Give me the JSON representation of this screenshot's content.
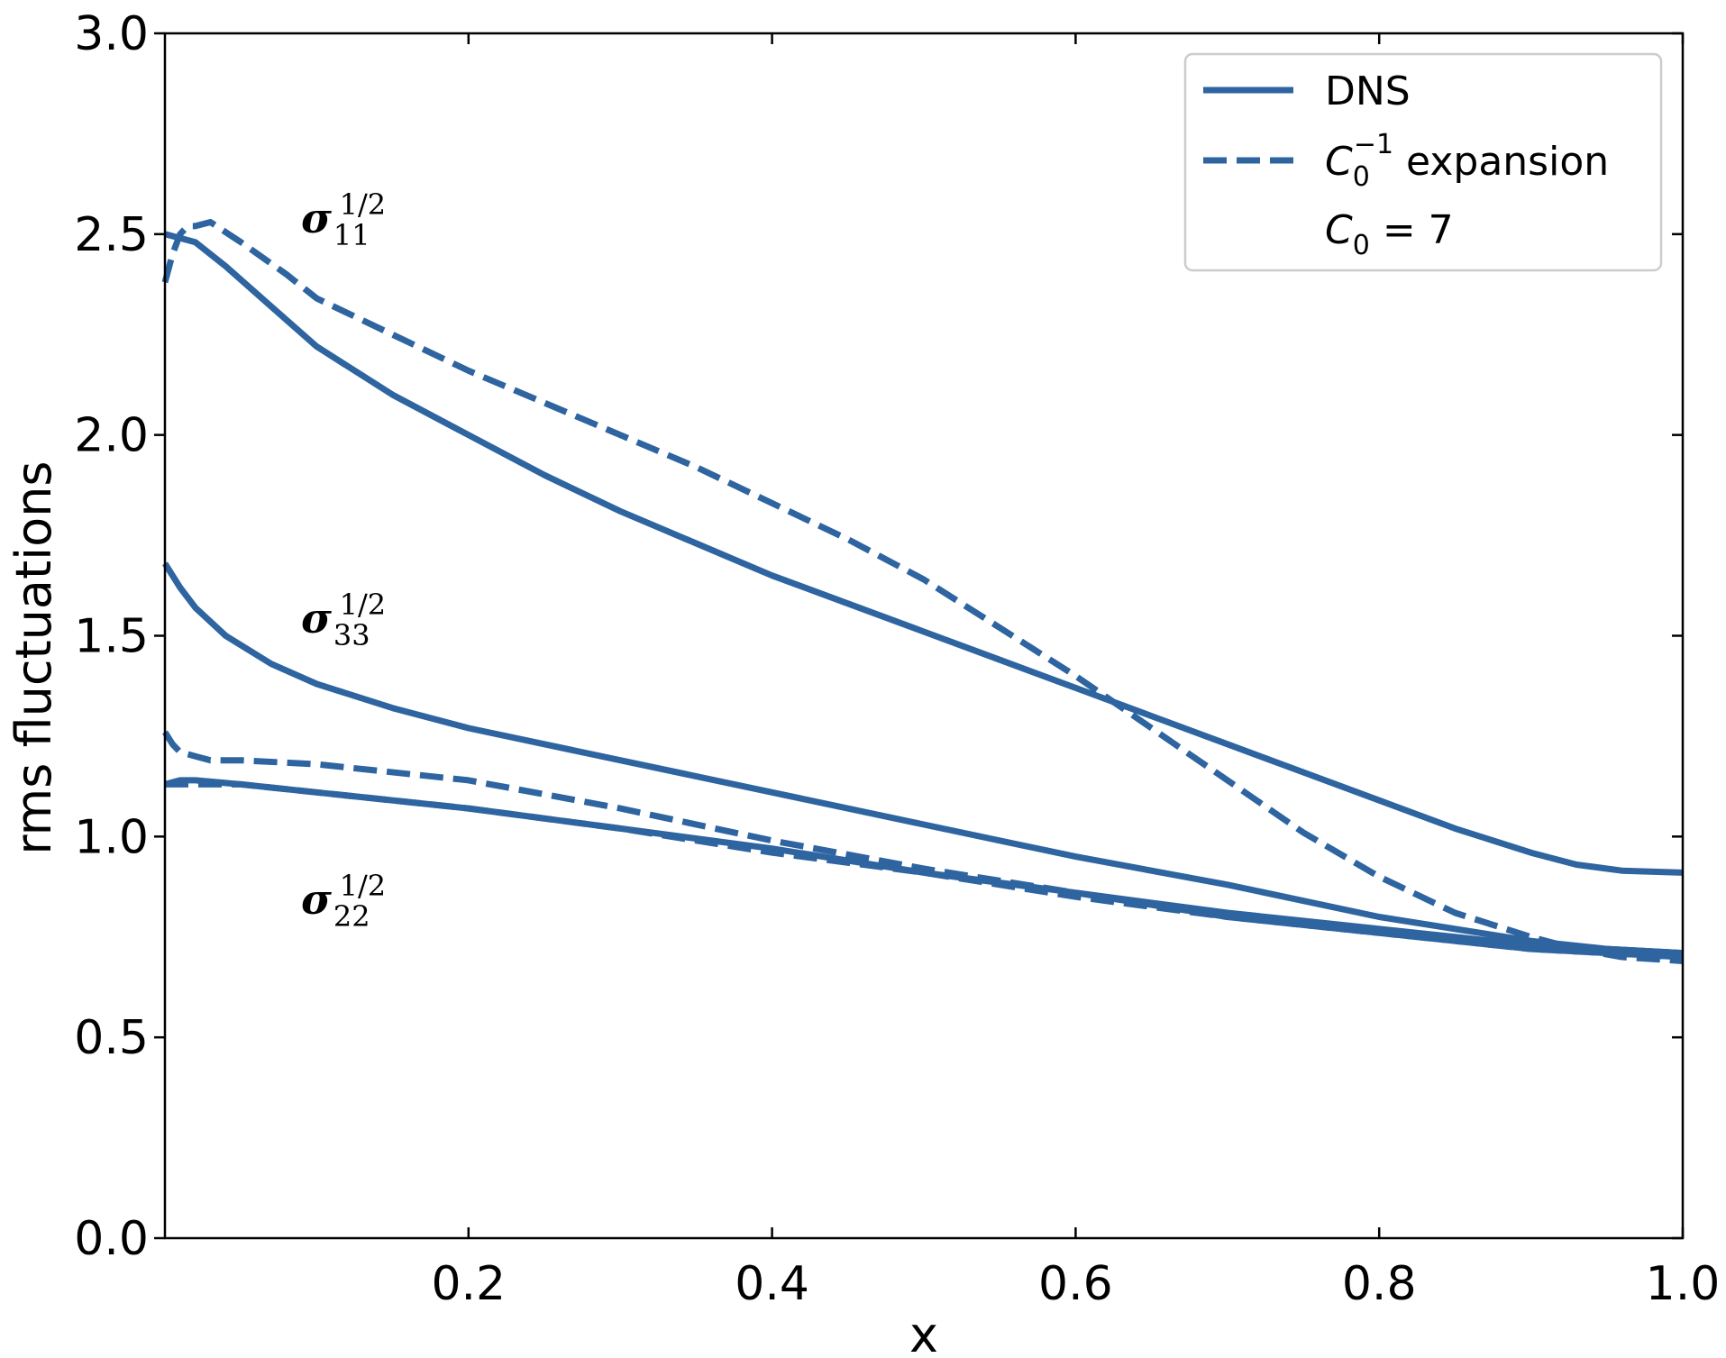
{
  "chart_data": {
    "type": "line",
    "xlabel": "x",
    "ylabel": "rms fluctuations",
    "xlim": [
      0.0,
      1.0
    ],
    "ylim": [
      0.0,
      3.0
    ],
    "xticks": [
      0.2,
      0.4,
      0.6,
      0.8,
      1.0
    ],
    "xtick_labels": [
      "0.2",
      "0.4",
      "0.6",
      "0.8",
      "1.0"
    ],
    "yticks": [
      0.0,
      0.5,
      1.0,
      1.5,
      2.0,
      2.5,
      3.0
    ],
    "ytick_labels": [
      "0.0",
      "0.5",
      "1.0",
      "1.5",
      "2.0",
      "2.5",
      "3.0"
    ],
    "color": "#2e64a0",
    "legend": {
      "position": "top-right",
      "entries": [
        {
          "label": "DNS",
          "style": "solid"
        },
        {
          "label_main": "C",
          "label_sub": "0",
          "label_sup": "−1",
          "label_rest": " expansion",
          "style": "dashed"
        },
        {
          "label_main": "C",
          "label_sub": "0",
          "label_rest": " = 7",
          "style": "none"
        }
      ]
    },
    "annotations": [
      {
        "symbol": "σ",
        "sub": "11",
        "sup": "1/2"
      },
      {
        "symbol": "σ",
        "sub": "33",
        "sup": "1/2"
      },
      {
        "symbol": "σ",
        "sub": "22",
        "sup": "1/2"
      }
    ],
    "series": [
      {
        "name": "DNS sigma11",
        "style": "solid",
        "x": [
          0.0,
          0.02,
          0.04,
          0.07,
          0.1,
          0.15,
          0.2,
          0.25,
          0.3,
          0.35,
          0.4,
          0.45,
          0.5,
          0.55,
          0.6,
          0.65,
          0.7,
          0.75,
          0.8,
          0.85,
          0.9,
          0.93,
          0.96,
          1.0
        ],
        "y": [
          2.5,
          2.48,
          2.42,
          2.32,
          2.22,
          2.1,
          2.0,
          1.9,
          1.81,
          1.73,
          1.65,
          1.58,
          1.51,
          1.44,
          1.37,
          1.3,
          1.23,
          1.16,
          1.09,
          1.02,
          0.96,
          0.93,
          0.915,
          0.91
        ]
      },
      {
        "name": "Expansion sigma11",
        "style": "dashed",
        "x": [
          0.0,
          0.005,
          0.01,
          0.015,
          0.02,
          0.03,
          0.05,
          0.08,
          0.1,
          0.15,
          0.2,
          0.25,
          0.3,
          0.35,
          0.4,
          0.45,
          0.5,
          0.55,
          0.6,
          0.65,
          0.7,
          0.75,
          0.8,
          0.85,
          0.9,
          0.93,
          0.96,
          1.0
        ],
        "y": [
          2.38,
          2.45,
          2.5,
          2.52,
          2.52,
          2.53,
          2.48,
          2.4,
          2.34,
          2.25,
          2.16,
          2.08,
          2.0,
          1.92,
          1.83,
          1.74,
          1.64,
          1.52,
          1.4,
          1.27,
          1.14,
          1.01,
          0.9,
          0.81,
          0.75,
          0.72,
          0.7,
          0.69
        ]
      },
      {
        "name": "DNS sigma33",
        "style": "solid",
        "x": [
          0.0,
          0.01,
          0.02,
          0.04,
          0.07,
          0.1,
          0.15,
          0.2,
          0.3,
          0.4,
          0.5,
          0.6,
          0.7,
          0.8,
          0.9,
          0.95,
          1.0
        ],
        "y": [
          1.68,
          1.62,
          1.57,
          1.5,
          1.43,
          1.38,
          1.32,
          1.27,
          1.19,
          1.11,
          1.03,
          0.95,
          0.88,
          0.8,
          0.74,
          0.72,
          0.71
        ]
      },
      {
        "name": "Expansion sigma33",
        "style": "dashed",
        "x": [
          0.0,
          0.005,
          0.01,
          0.02,
          0.03,
          0.05,
          0.1,
          0.2,
          0.3,
          0.4,
          0.5,
          0.6,
          0.7,
          0.8,
          0.9,
          0.95,
          1.0
        ],
        "y": [
          1.26,
          1.23,
          1.21,
          1.2,
          1.19,
          1.19,
          1.18,
          1.14,
          1.07,
          0.99,
          0.92,
          0.86,
          0.8,
          0.76,
          0.72,
          0.71,
          0.7
        ]
      },
      {
        "name": "DNS sigma22",
        "style": "solid",
        "x": [
          0.0,
          0.01,
          0.02,
          0.05,
          0.1,
          0.2,
          0.3,
          0.4,
          0.5,
          0.6,
          0.7,
          0.8,
          0.9,
          0.95,
          1.0
        ],
        "y": [
          1.13,
          1.14,
          1.14,
          1.13,
          1.11,
          1.07,
          1.02,
          0.97,
          0.91,
          0.86,
          0.81,
          0.77,
          0.73,
          0.72,
          0.71
        ]
      },
      {
        "name": "Expansion sigma22",
        "style": "dashed",
        "x": [
          0.0,
          0.05,
          0.1,
          0.2,
          0.3,
          0.4,
          0.5,
          0.6,
          0.7,
          0.8,
          0.9,
          0.95,
          1.0
        ],
        "y": [
          1.13,
          1.13,
          1.11,
          1.07,
          1.02,
          0.96,
          0.91,
          0.85,
          0.8,
          0.76,
          0.72,
          0.71,
          0.7
        ]
      }
    ]
  }
}
